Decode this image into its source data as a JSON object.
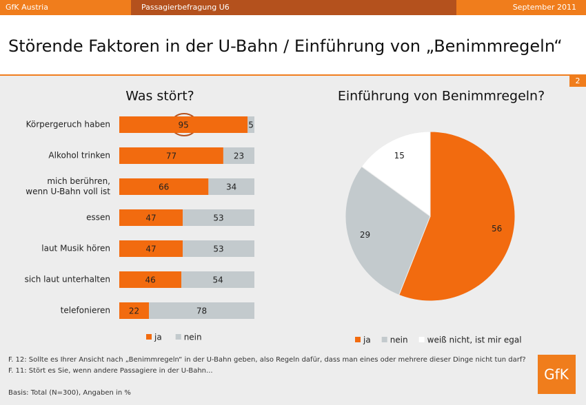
{
  "header": {
    "left": "GfK Austria",
    "center": "Passagierbefragung U6",
    "right": "September 2011"
  },
  "title": "Störende Faktoren in der U-Bahn / Einführung von „Benimmregeln“",
  "page_number": "2",
  "chart_data": [
    {
      "type": "stacked-bar",
      "title": "Was stört?",
      "categories": [
        "Körpergeruch haben",
        "Alkohol trinken",
        "mich berühren,\nwenn U-Bahn voll ist",
        "essen",
        "laut Musik hören",
        "sich laut unterhalten",
        "telefonieren"
      ],
      "series": [
        {
          "name": "ja",
          "color": "#f26b0f",
          "values": [
            95,
            77,
            66,
            47,
            47,
            46,
            22
          ]
        },
        {
          "name": "nein",
          "color": "#c3cacd",
          "values": [
            5,
            23,
            34,
            53,
            53,
            54,
            78
          ]
        }
      ],
      "xlim": [
        0,
        100
      ]
    },
    {
      "type": "pie",
      "title": "Einführung von Benimmregeln?",
      "categories": [
        "ja",
        "nein",
        "weiß nicht, ist mir egal"
      ],
      "values": [
        56,
        29,
        15
      ],
      "colors": [
        "#f26b0f",
        "#c3cacd",
        "#ffffff"
      ]
    }
  ],
  "footnotes": [
    "F. 12: Sollte es Ihrer Ansicht nach „Benimmregeln“ in der U-Bahn geben, also Regeln dafür, dass man eines oder mehrere dieser Dinge nicht tun darf?",
    "F. 11: Stört es Sie, wenn andere Passagiere in der U-Bahn..."
  ],
  "basis": "Basis: Total (N=300), Angaben in %",
  "logo": "GfK"
}
